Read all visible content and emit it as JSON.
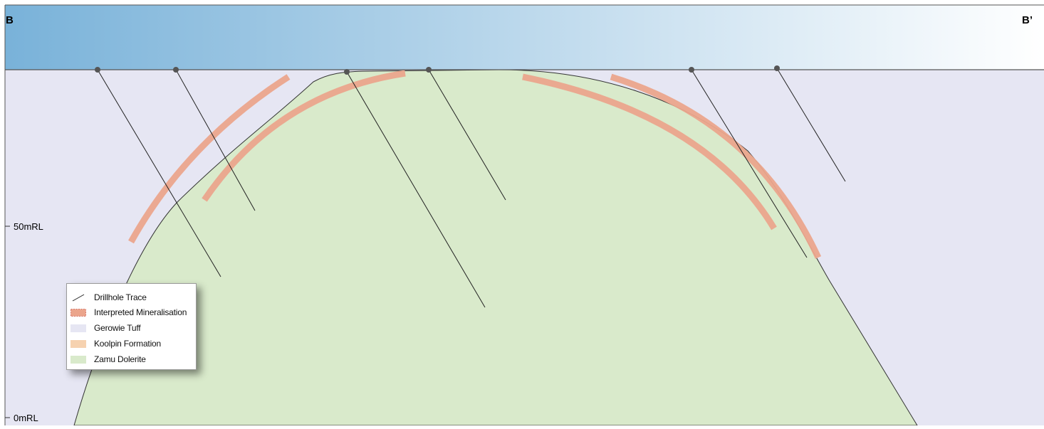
{
  "section": {
    "left_label": "B",
    "right_label": "B’",
    "elevation_labels": [
      "50mRL",
      "0mRL"
    ]
  },
  "colors": {
    "sky_gradient": [
      "#79b2d9",
      "#ffffff"
    ],
    "gerowie_tuff": "#e6e6f3",
    "zamu_dolerite": "#d9eacb",
    "koolpin_formation": "#f6d2b0",
    "mineralisation": "#eba58c",
    "drillhole": "#222222",
    "collar": "#555555"
  },
  "legend": {
    "items": [
      {
        "label": "Drillhole Trace",
        "icon": "line-icon"
      },
      {
        "label": "Interpreted Mineralisation",
        "icon": "hatched-swatch-icon"
      },
      {
        "label": "Gerowie Tuff",
        "icon": "swatch-icon"
      },
      {
        "label": "Koolpin Formation",
        "icon": "swatch-icon"
      },
      {
        "label": "Zamu Dolerite",
        "icon": "swatch-icon"
      }
    ]
  }
}
